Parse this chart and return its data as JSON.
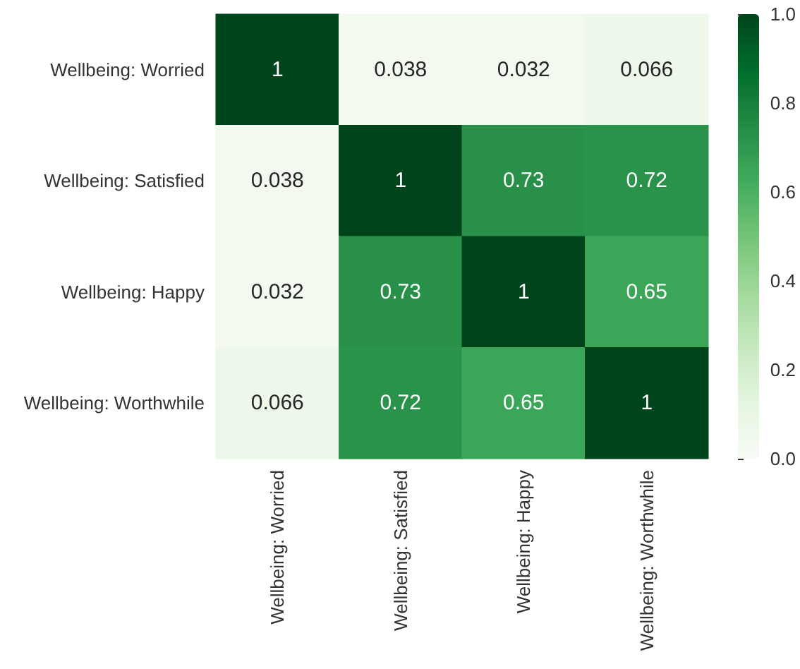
{
  "chart_data": {
    "type": "heatmap",
    "categories": [
      "Wellbeing: Worried",
      "Wellbeing: Satisfied",
      "Wellbeing: Happy",
      "Wellbeing: Worthwhile"
    ],
    "y_categories": [
      "Wellbeing: Worried",
      "Wellbeing: Satisfied",
      "Wellbeing: Happy",
      "Wellbeing: Worthwhile"
    ],
    "cells": [
      [
        1,
        0.038,
        0.032,
        0.066
      ],
      [
        0.038,
        1,
        0.73,
        0.72
      ],
      [
        0.032,
        0.73,
        1,
        0.65
      ],
      [
        0.066,
        0.72,
        0.65,
        1
      ]
    ],
    "clim": [
      0,
      1
    ],
    "cticks": [
      {
        "value": 0,
        "label": "0.0"
      },
      {
        "value": 0.2,
        "label": "0.2"
      },
      {
        "value": 0.4,
        "label": "0.4"
      },
      {
        "value": 0.6,
        "label": "0.6"
      },
      {
        "value": 0.8,
        "label": "0.8"
      },
      {
        "value": 1,
        "label": "1.0"
      }
    ],
    "data_labels": true
  }
}
